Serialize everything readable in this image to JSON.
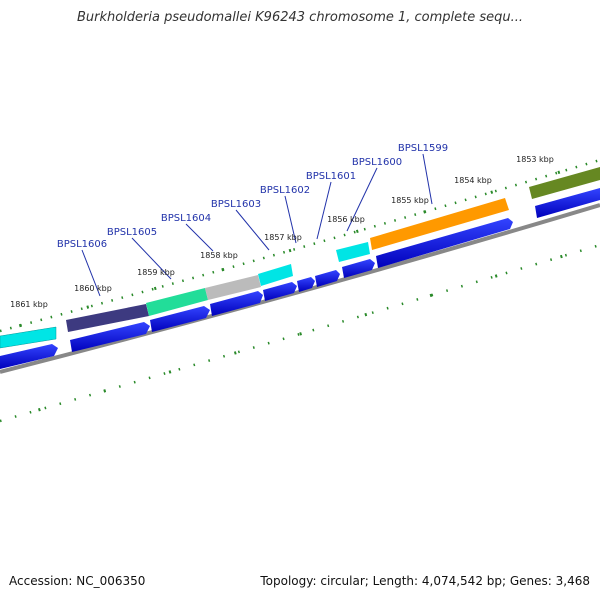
{
  "title": "Burkholderia pseudomallei K96243 chromosome 1, complete sequ...",
  "footer": {
    "accession": "Accession: NC_006350",
    "genome_info": "Topology: circular; Length: 4,074,542 bp; Genes: 3,468"
  },
  "colors": {
    "gene_arrow": "#0000dd",
    "backbone": "#888888",
    "ticks": "#2a8a2a",
    "label": "#2233aa"
  },
  "kbp_labels": [
    "1861 kbp",
    "1860 kbp",
    "1859 kbp",
    "1858 kbp",
    "1857 kbp",
    "1856 kbp",
    "1855 kbp",
    "1854 kbp",
    "1853 kbp"
  ],
  "gene_labels": [
    "BPSL1606",
    "BPSL1605",
    "BPSL1604",
    "BPSL1603",
    "BPSL1602",
    "BPSL1601",
    "BPSL1600",
    "BPSL1599"
  ],
  "cog_colors": [
    "#00e5e5",
    "#3d3a80",
    "#22dd99",
    "#bbbbbb",
    "#00e5e5",
    "#00e5e5",
    "#ff9900",
    "#668822"
  ]
}
